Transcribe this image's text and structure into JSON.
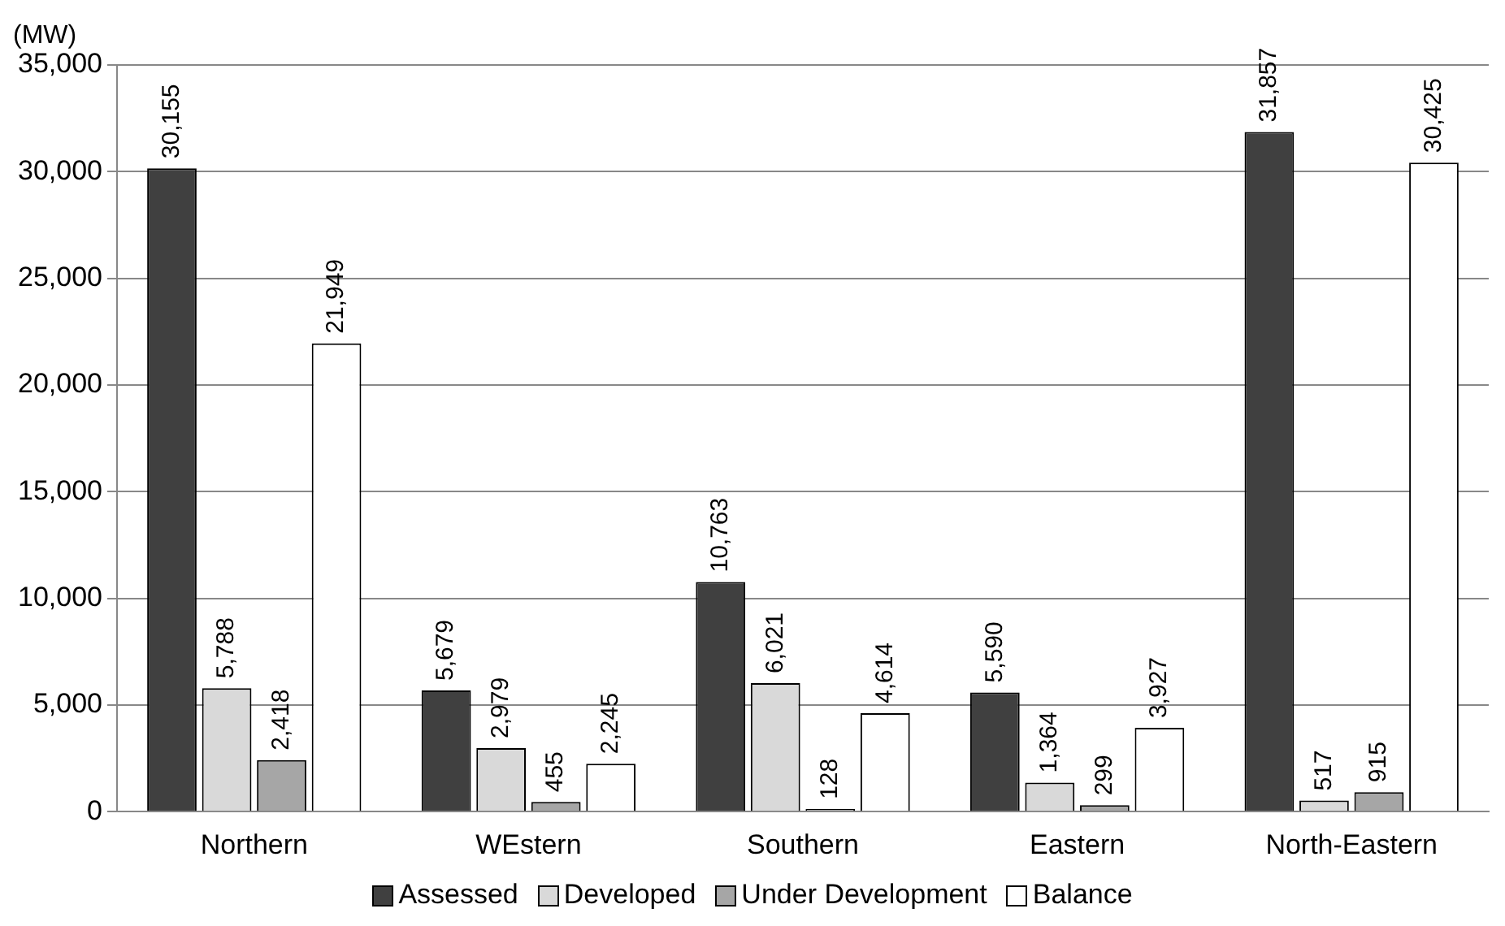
{
  "chart_data": {
    "type": "bar",
    "ylabel": "(MW)",
    "categories": [
      "Northern",
      "WEstern",
      "Southern",
      "Eastern",
      "North-Eastern"
    ],
    "series": [
      {
        "name": "Assessed",
        "color": "#404040",
        "values": [
          30155,
          5679,
          10763,
          5590,
          31857
        ],
        "value_labels": [
          "30,155",
          "5,679",
          "10,763",
          "5,590",
          "31,857"
        ]
      },
      {
        "name": "Developed",
        "color": "#d9d9d9",
        "values": [
          5788,
          2979,
          6021,
          1364,
          517
        ],
        "value_labels": [
          "5,788",
          "2,979",
          "6,021",
          "1,364",
          "517"
        ]
      },
      {
        "name": "Under Development",
        "color": "#a6a6a6",
        "values": [
          2418,
          455,
          128,
          299,
          915
        ],
        "value_labels": [
          "2,418",
          "455",
          "128",
          "299",
          "915"
        ]
      },
      {
        "name": "Balance",
        "color": "#ffffff",
        "values": [
          21949,
          2245,
          4614,
          3927,
          30425
        ],
        "value_labels": [
          "21,949",
          "2,245",
          "4,614",
          "3,927",
          "30,425"
        ]
      }
    ],
    "ylim": [
      0,
      35000
    ],
    "yticks": [
      {
        "value": 0,
        "label": "0"
      },
      {
        "value": 5000,
        "label": "5,000"
      },
      {
        "value": 10000,
        "label": "10,000"
      },
      {
        "value": 15000,
        "label": "15,000"
      },
      {
        "value": 20000,
        "label": "20,000"
      },
      {
        "value": 25000,
        "label": "25,000"
      },
      {
        "value": 30000,
        "label": "30,000"
      },
      {
        "value": 35000,
        "label": "35,000"
      }
    ],
    "grid": "y",
    "legend": "bottom"
  }
}
